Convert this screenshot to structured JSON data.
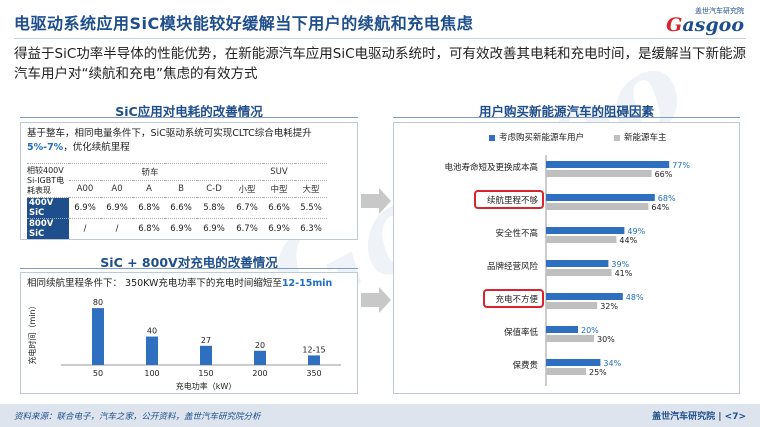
{
  "header": {
    "title": "电驱动系统应用SiC模块能较好缓解当下用户的续航和充电焦虑",
    "logo_cn": "盖世汽车研究院",
    "logo_en_g": "G",
    "logo_en_rest": "asgoo"
  },
  "lead_text": "得益于SiC功率半导体的性能优势，在新能源汽车应用SiC电驱动系统时，可有效改善其电耗和充电时间，是缓解当下新能源汽车用户对“续航和充电”焦虑的有效方式",
  "efficiency": {
    "title": "SiC应用对电耗的改善情况",
    "note_prefix": "基于整车，相同电量条件下，SiC驱动系统可实现CLTC综合电耗提升",
    "note_highlight": "5%-7%",
    "note_suffix": "，优化续航里程",
    "corner_label": "相较400V Si-IGBT电耗表现",
    "group_car": "轿车",
    "group_suv": "SUV",
    "columns": [
      "A00",
      "A0",
      "A",
      "B",
      "C-D",
      "小型",
      "中型",
      "大型"
    ],
    "rows": [
      {
        "label": "400V SiC",
        "values": [
          "6.9%",
          "6.9%",
          "6.8%",
          "6.6%",
          "5.8%",
          "6.7%",
          "6.6%",
          "5.5%"
        ]
      },
      {
        "label": "800V SiC",
        "values": [
          "/",
          "/",
          "6.8%",
          "6.9%",
          "6.9%",
          "6.7%",
          "6.9%",
          "6.3%"
        ]
      }
    ]
  },
  "charging": {
    "title": "SiC + 800V对充电的改善情况",
    "note_prefix": "相同续航里程条件下：  350KW充电功率下的充电时间缩短至",
    "note_highlight": "12-15min",
    "ylabel": "充电时间（min）",
    "xlabel": "充电功率（kW）"
  },
  "barriers": {
    "title": "用户购买新能源汽车的阻碍因素",
    "legend_a": "考虑购买新能源车用户",
    "legend_b": "新能源车主"
  },
  "colors": {
    "brand": "#1f4e8c",
    "accent_blue": "#1f6fc1",
    "bar_blue": "#2f6fbf",
    "bar_gray": "#bfbfbf",
    "highlight_red": "#d9232e"
  },
  "footer": {
    "source": "资料来源：联合电子，汽车之家，公开资料，盖世汽车研究院分析",
    "org": "盖世汽车研究院",
    "page": "7"
  },
  "chart_data": [
    {
      "type": "bar",
      "title": "SiC + 800V对充电的改善情况",
      "xlabel": "充电功率（kW）",
      "ylabel": "充电时间（min）",
      "categories": [
        "50",
        "100",
        "150",
        "200",
        "350"
      ],
      "values": [
        80,
        40,
        27,
        20,
        13.5
      ],
      "data_labels": [
        "80",
        "40",
        "27",
        "20",
        "12-15"
      ],
      "ylim": [
        0,
        90
      ]
    },
    {
      "type": "bar",
      "orientation": "horizontal",
      "title": "用户购买新能源汽车的阻碍因素",
      "categories": [
        "电池寿命短及更换成本高",
        "续航里程不够",
        "安全性不高",
        "品牌经营风险",
        "充电不方便",
        "保值率低",
        "保费贵"
      ],
      "series": [
        {
          "name": "考虑购买新能源车用户",
          "values": [
            77,
            68,
            49,
            39,
            48,
            20,
            34
          ],
          "labels": [
            "77%",
            "68%",
            "49%",
            "39%",
            "48%",
            "20%",
            "34%"
          ]
        },
        {
          "name": "新能源车主",
          "values": [
            66,
            64,
            44,
            41,
            32,
            30,
            25
          ],
          "labels": [
            "66%",
            "64%",
            "44%",
            "41%",
            "32%",
            "30%",
            "25%"
          ]
        }
      ],
      "xlim": [
        0,
        100
      ],
      "highlighted_categories": [
        "续航里程不够",
        "充电不方便"
      ],
      "legend": "top"
    }
  ]
}
